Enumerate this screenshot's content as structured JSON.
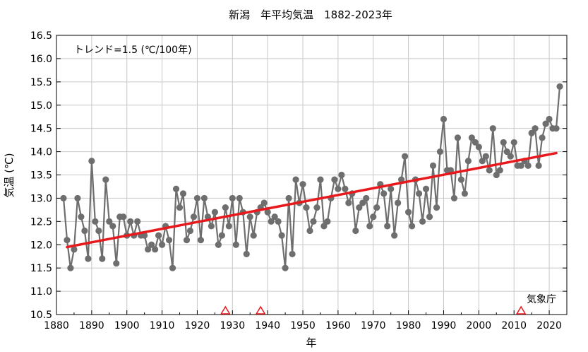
{
  "chart_data": {
    "type": "line",
    "title": "新潟　年平均気温　1882-2023年",
    "xlabel": "年",
    "ylabel": "気温 (℃)",
    "xlim": [
      1880,
      2025
    ],
    "ylim": [
      10.5,
      16.5
    ],
    "xticks": [
      "1880",
      "1890",
      "1900",
      "1910",
      "1920",
      "1930",
      "1940",
      "1950",
      "1960",
      "1970",
      "1980",
      "1990",
      "2000",
      "2010",
      "2020"
    ],
    "yticks": [
      "10.5",
      "11.0",
      "11.5",
      "12.0",
      "12.5",
      "13.0",
      "13.5",
      "14.0",
      "14.5",
      "15.0",
      "15.5",
      "16.0",
      "16.5"
    ],
    "grid": true,
    "annotation": "トレンド=1.5 (℃/100年)",
    "source": "気象庁",
    "colors": {
      "series": "#6e6e6e",
      "trend": "#e8191c",
      "marker": "#e8191c"
    },
    "series": [
      {
        "x": [
          1882,
          1883,
          1884,
          1885,
          1886,
          1887,
          1888,
          1889,
          1890,
          1891,
          1892,
          1893,
          1894,
          1895,
          1896,
          1897,
          1898,
          1899,
          1900,
          1901,
          1902,
          1903,
          1904,
          1905,
          1906,
          1907,
          1908,
          1909,
          1910,
          1911,
          1912,
          1913,
          1914,
          1915,
          1916,
          1917,
          1918,
          1919,
          1920,
          1921,
          1922,
          1923,
          1924,
          1925,
          1926,
          1927,
          1928,
          1929,
          1930,
          1931,
          1932,
          1933,
          1934,
          1935,
          1936,
          1937,
          1938,
          1939,
          1940,
          1941,
          1942,
          1943,
          1944,
          1945,
          1946,
          1947,
          1948,
          1949,
          1950,
          1951,
          1952,
          1953,
          1954,
          1955,
          1956,
          1957,
          1958,
          1959,
          1960,
          1961,
          1962,
          1963,
          1964,
          1965,
          1966,
          1967,
          1968,
          1969,
          1970,
          1971,
          1972,
          1973,
          1974,
          1975,
          1976,
          1977,
          1978,
          1979,
          1980,
          1981,
          1982,
          1983,
          1984,
          1985,
          1986,
          1987,
          1988,
          1989,
          1990,
          1991,
          1992,
          1993,
          1994,
          1995,
          1996,
          1997,
          1998,
          1999,
          2000,
          2001,
          2002,
          2003,
          2004,
          2005,
          2006,
          2007,
          2008,
          2009,
          2010,
          2011,
          2012,
          2013,
          2014,
          2015,
          2016,
          2017,
          2018,
          2019,
          2020,
          2021,
          2022,
          2023
        ],
        "values": [
          13.0,
          12.1,
          11.5,
          11.9,
          13.0,
          12.6,
          12.3,
          11.7,
          13.8,
          12.5,
          12.3,
          11.7,
          13.4,
          12.5,
          12.4,
          11.6,
          12.6,
          12.6,
          12.2,
          12.5,
          12.2,
          12.5,
          12.2,
          12.2,
          11.9,
          12.0,
          11.9,
          12.2,
          12.0,
          12.4,
          12.1,
          11.5,
          13.2,
          12.8,
          13.1,
          12.1,
          12.3,
          12.6,
          13.0,
          12.1,
          13.0,
          12.6,
          12.4,
          12.7,
          12.0,
          12.2,
          12.8,
          12.4,
          13.0,
          12.0,
          13.0,
          12.7,
          11.8,
          12.6,
          12.2,
          12.7,
          12.8,
          12.9,
          12.7,
          12.5,
          12.6,
          12.5,
          12.2,
          11.5,
          13.0,
          11.8,
          13.4,
          12.9,
          13.3,
          12.8,
          12.3,
          12.5,
          12.8,
          13.4,
          12.4,
          12.5,
          13.0,
          13.4,
          13.2,
          13.5,
          13.2,
          12.9,
          13.1,
          12.3,
          12.8,
          12.9,
          13.0,
          12.4,
          12.6,
          12.8,
          13.3,
          13.1,
          12.4,
          13.2,
          12.2,
          12.9,
          13.4,
          13.9,
          12.7,
          12.4,
          13.4,
          13.1,
          12.5,
          13.2,
          12.6,
          13.7,
          12.8,
          14.0,
          14.7,
          13.6,
          13.6,
          13.0,
          14.3,
          13.4,
          13.1,
          13.8,
          14.3,
          14.2,
          14.1,
          13.8,
          13.9,
          13.6,
          14.5,
          13.5,
          13.6,
          14.2,
          14.0,
          13.9,
          14.2,
          13.7,
          13.7,
          13.8,
          13.7,
          14.4,
          14.5,
          13.7,
          14.3,
          14.6,
          14.7,
          14.5,
          14.5,
          15.4
        ]
      },
      {
        "x": [
          1883,
          2022
        ],
        "values": [
          11.95,
          13.97
        ]
      }
    ],
    "markers_x": [
      1928,
      1938,
      2012
    ]
  }
}
